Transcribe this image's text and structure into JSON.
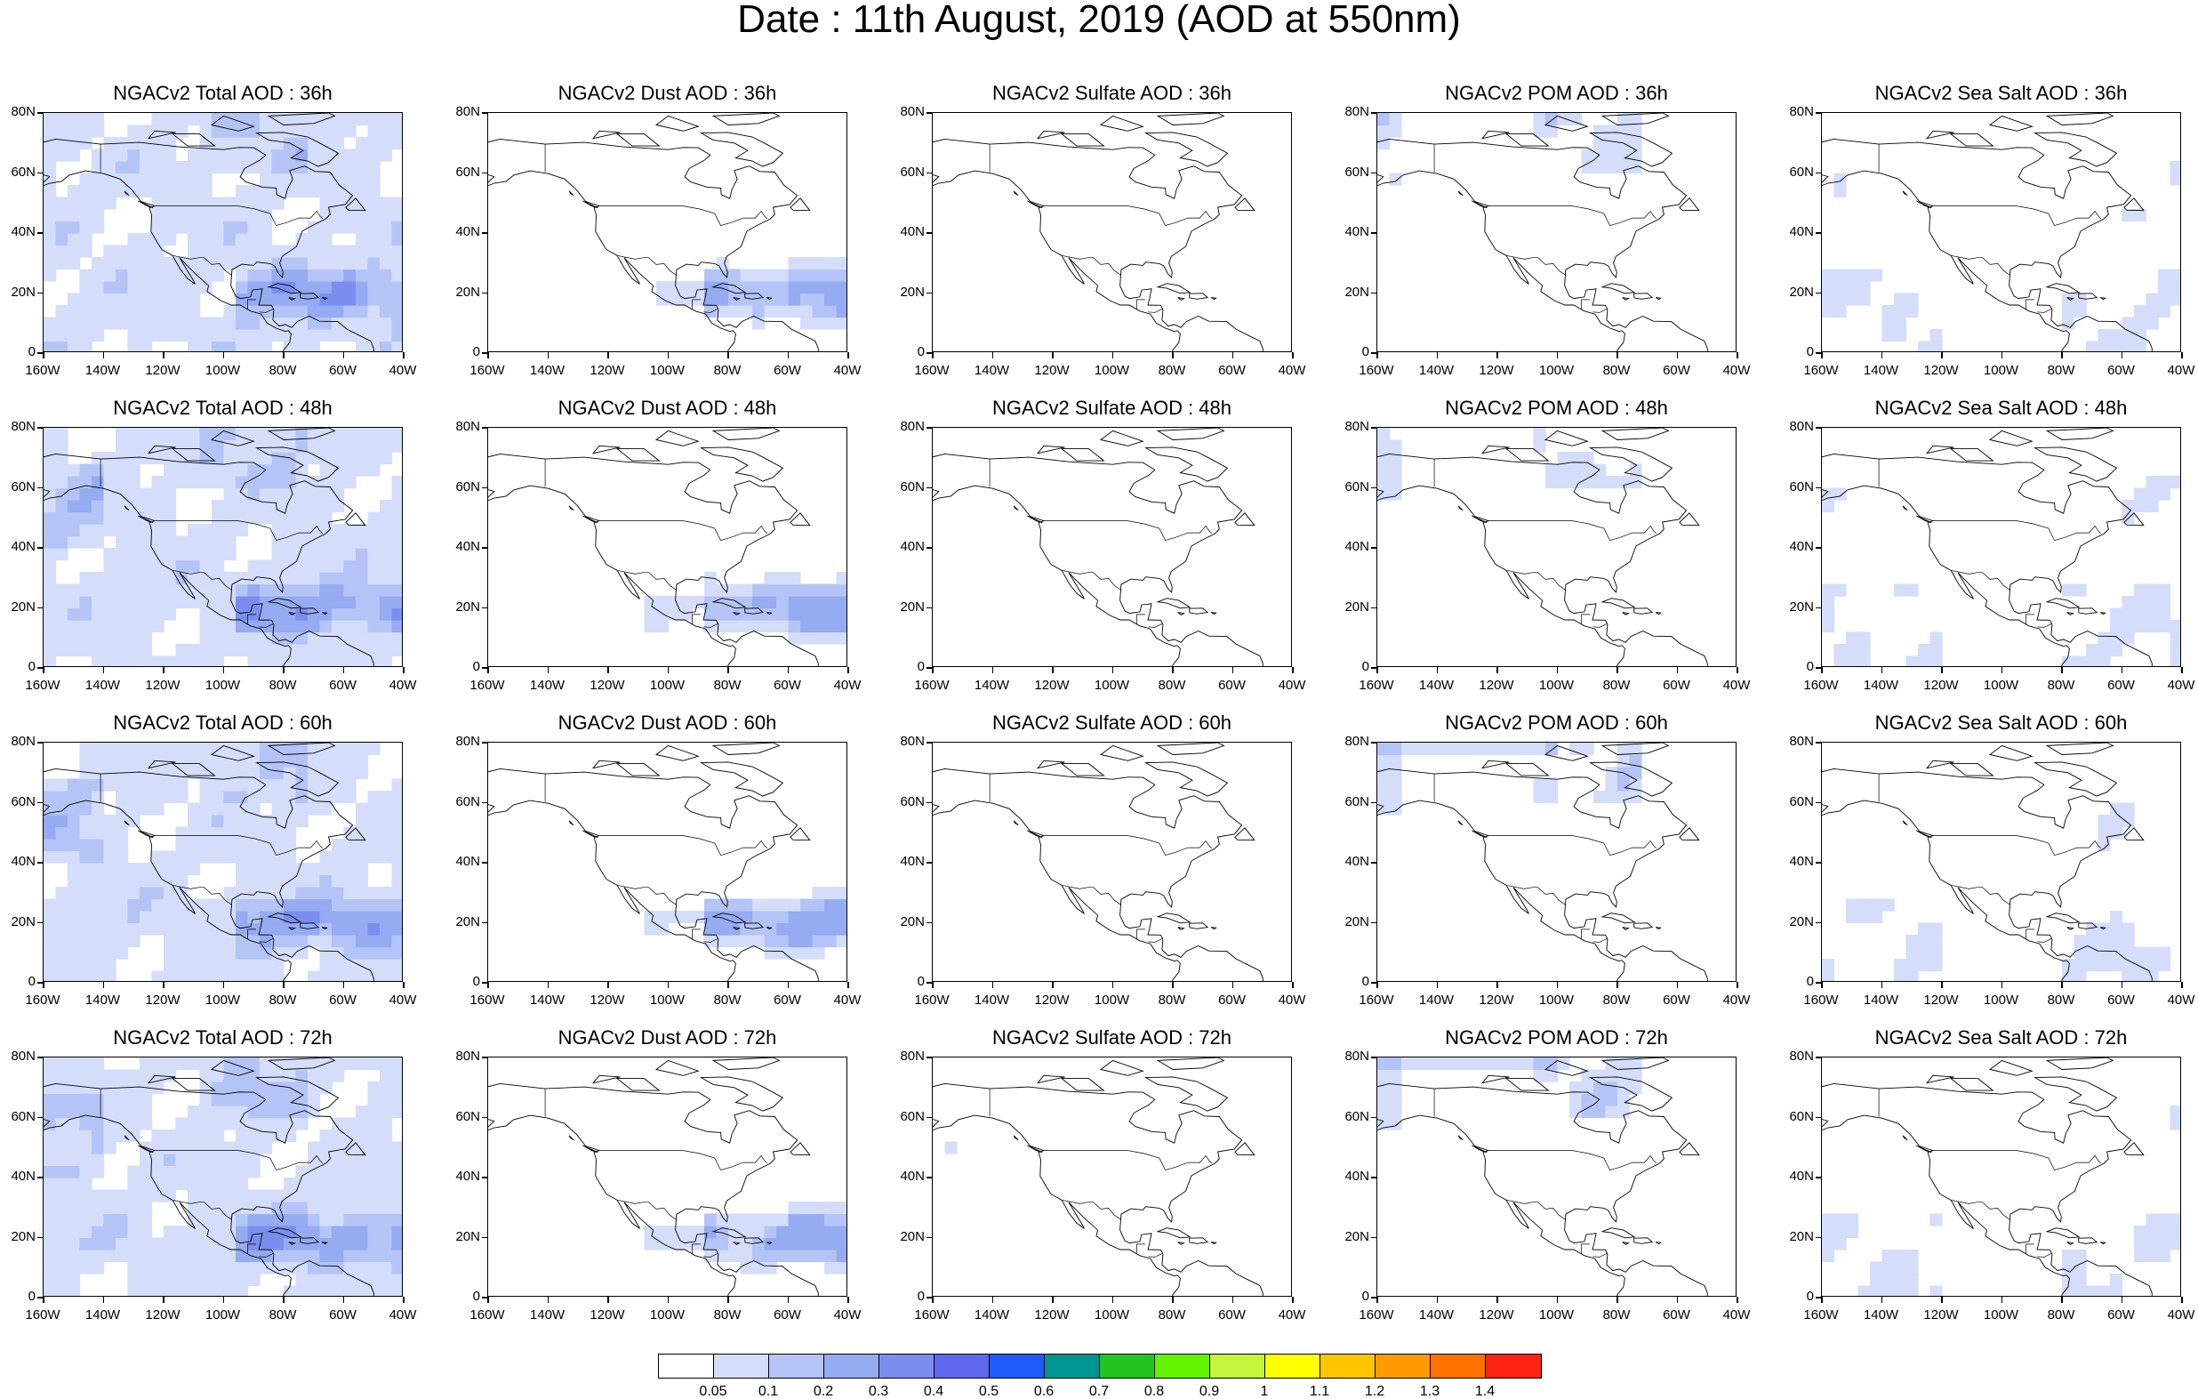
{
  "title": "Date : 11th August, 2019 (AOD at 550nm)",
  "lat_ticks": [
    "0",
    "20N",
    "40N",
    "60N",
    "80N"
  ],
  "lon_ticks": [
    "160W",
    "140W",
    "120W",
    "100W",
    "80W",
    "60W",
    "40W"
  ],
  "panels": [
    {
      "title": "NGACv2 Total AOD : 36h",
      "var": "total",
      "lead": "36h"
    },
    {
      "title": "NGACv2 Dust AOD : 36h",
      "var": "dust",
      "lead": "36h"
    },
    {
      "title": "NGACv2 Sulfate AOD : 36h",
      "var": "sulfate",
      "lead": "36h"
    },
    {
      "title": "NGACv2 POM AOD : 36h",
      "var": "pom",
      "lead": "36h"
    },
    {
      "title": "NGACv2 Sea Salt AOD : 36h",
      "var": "seasalt",
      "lead": "36h"
    },
    {
      "title": "NGACv2 Total AOD : 48h",
      "var": "total",
      "lead": "48h"
    },
    {
      "title": "NGACv2 Dust AOD : 48h",
      "var": "dust",
      "lead": "48h"
    },
    {
      "title": "NGACv2 Sulfate AOD : 48h",
      "var": "sulfate",
      "lead": "48h"
    },
    {
      "title": "NGACv2 POM AOD : 48h",
      "var": "pom",
      "lead": "48h"
    },
    {
      "title": "NGACv2 Sea Salt AOD : 48h",
      "var": "seasalt",
      "lead": "48h"
    },
    {
      "title": "NGACv2 Total AOD : 60h",
      "var": "total",
      "lead": "60h"
    },
    {
      "title": "NGACv2 Dust AOD : 60h",
      "var": "dust",
      "lead": "60h"
    },
    {
      "title": "NGACv2 Sulfate AOD : 60h",
      "var": "sulfate",
      "lead": "60h"
    },
    {
      "title": "NGACv2 POM AOD : 60h",
      "var": "pom",
      "lead": "60h"
    },
    {
      "title": "NGACv2 Sea Salt AOD : 60h",
      "var": "seasalt",
      "lead": "60h"
    },
    {
      "title": "NGACv2 Total AOD : 72h",
      "var": "total",
      "lead": "72h"
    },
    {
      "title": "NGACv2 Dust AOD : 72h",
      "var": "dust",
      "lead": "72h"
    },
    {
      "title": "NGACv2 Sulfate AOD : 72h",
      "var": "sulfate",
      "lead": "72h"
    },
    {
      "title": "NGACv2 POM AOD : 72h",
      "var": "pom",
      "lead": "72h"
    },
    {
      "title": "NGACv2 Sea Salt  AOD : 72h",
      "var": "seasalt",
      "lead": "72h"
    }
  ],
  "colorbar": {
    "colors": [
      "#ffffff",
      "#d4ddfa",
      "#b4c4f6",
      "#95abf2",
      "#7b8ef0",
      "#5f67ec",
      "#1d5cfb",
      "#00958f",
      "#22c522",
      "#64f400",
      "#c5f53c",
      "#ffff00",
      "#ffc600",
      "#ff9b00",
      "#ff7200",
      "#ff2412"
    ],
    "labels": [
      "0.05",
      "0.1",
      "0.2",
      "0.3",
      "0.4",
      "0.5",
      "0.6",
      "0.7",
      "0.8",
      "0.9",
      "1",
      "1.1",
      "1.2",
      "1.3",
      "1.4"
    ]
  }
}
